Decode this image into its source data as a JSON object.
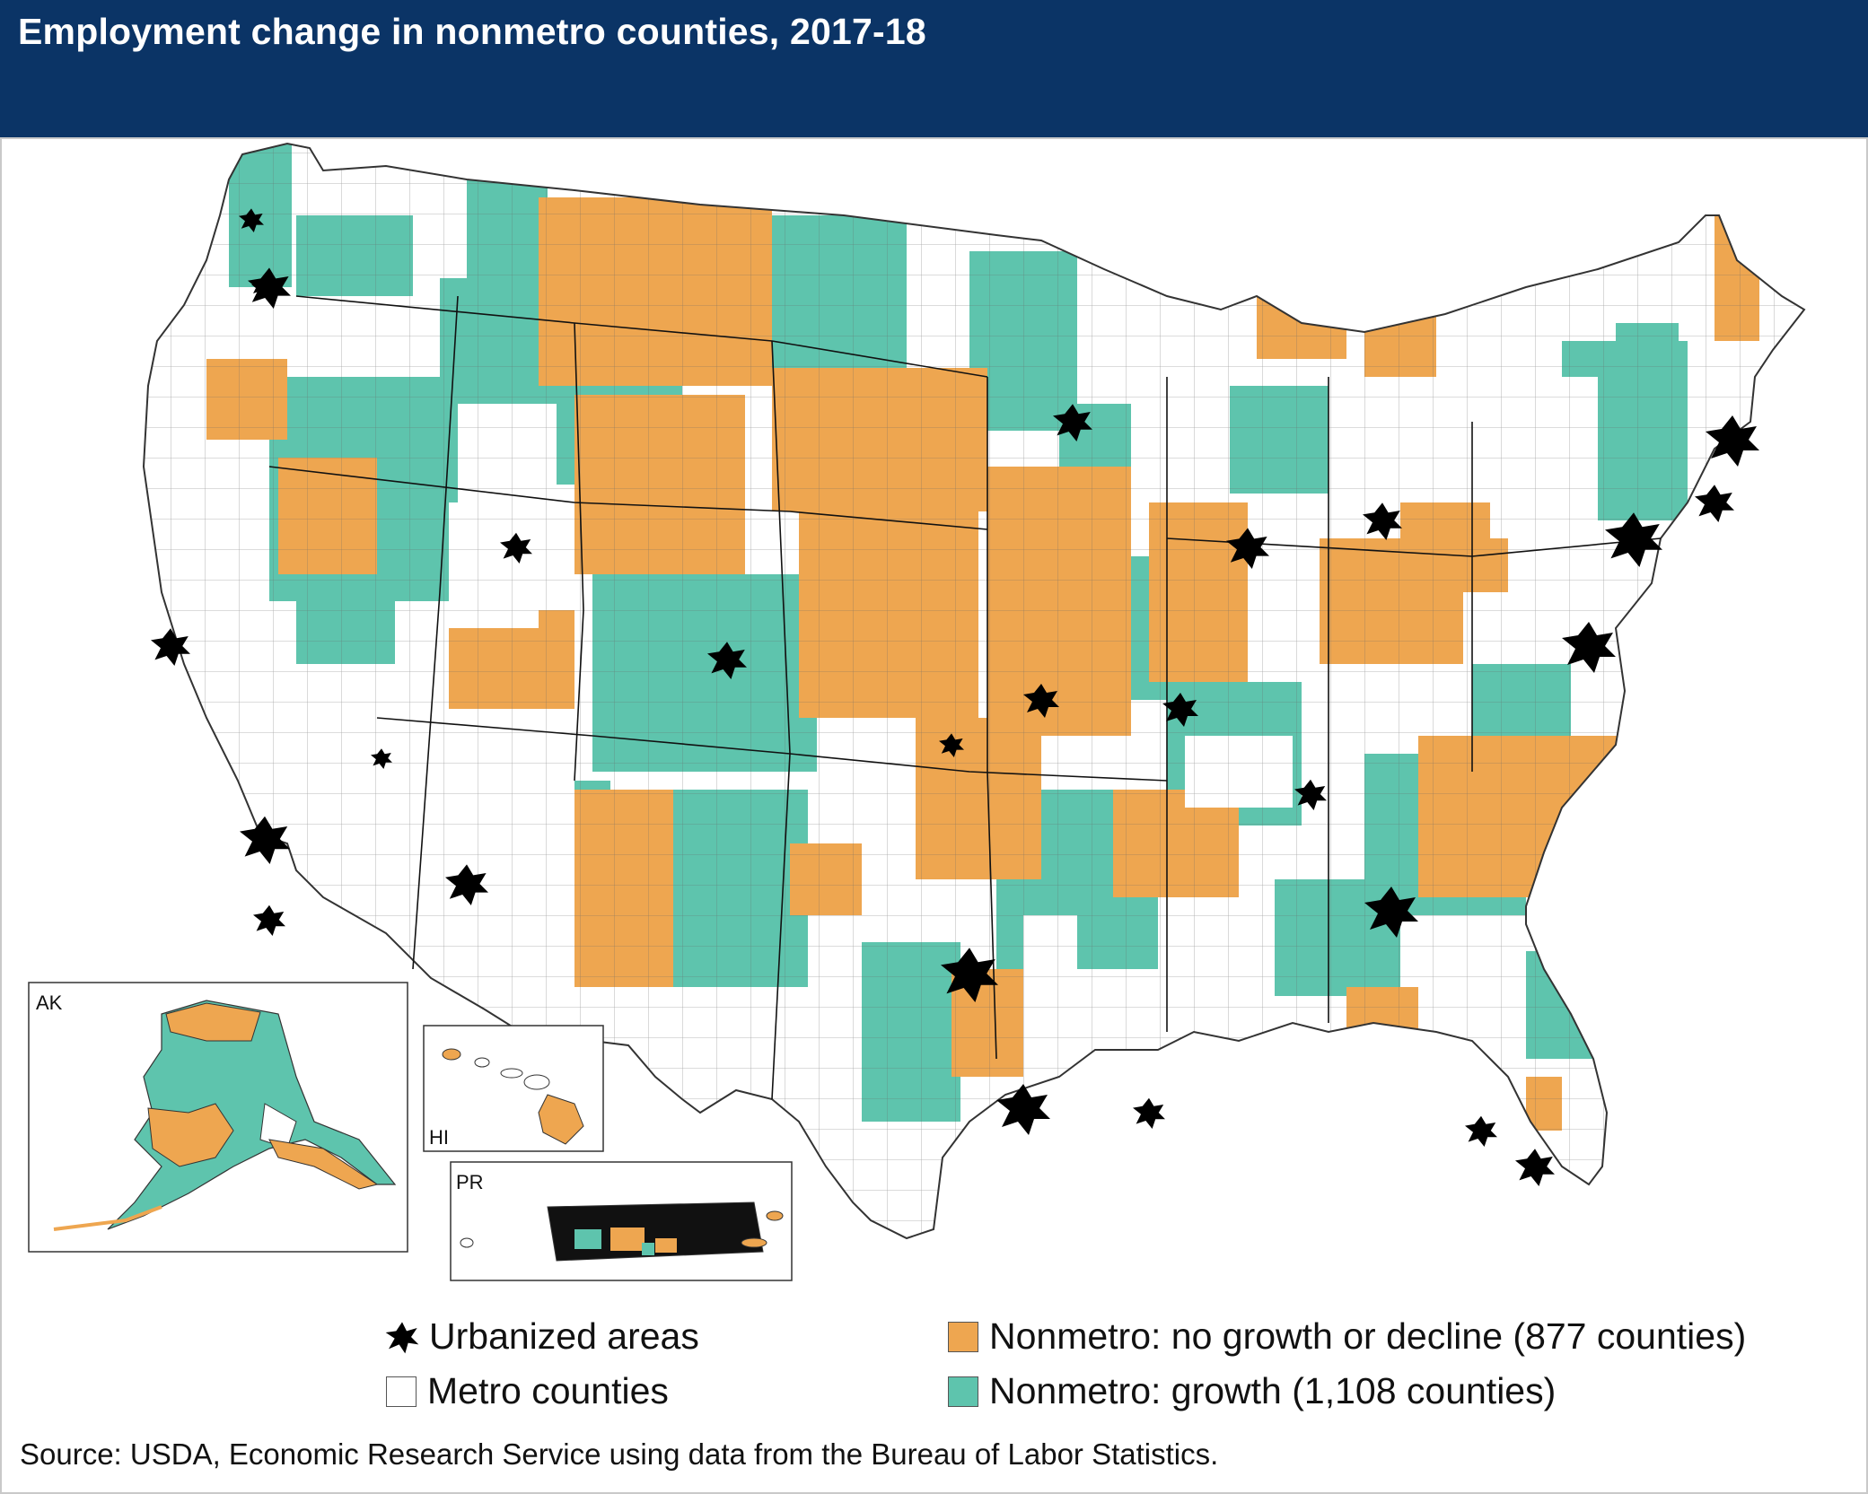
{
  "title": "Employment change in nonmetro counties, 2017-18",
  "colors": {
    "header_bg": "#0b3466",
    "no_growth": "#eea650",
    "growth": "#5ec4ad",
    "metro": "#ffffff",
    "urban": "#000000",
    "border": "#555555"
  },
  "insets": {
    "alaska": "AK",
    "hawaii": "HI",
    "puerto_rico": "PR"
  },
  "legend": {
    "urban": "Urbanized areas",
    "metro": "Metro counties",
    "no_growth": "Nonmetro: no growth or decline (877 counties)",
    "growth": "Nonmetro: growth (1,108 counties)"
  },
  "counts": {
    "no_growth_counties": 877,
    "growth_counties": 1108
  },
  "source": "Source: USDA, Economic Research Service using data from the Bureau of Labor Statistics."
}
